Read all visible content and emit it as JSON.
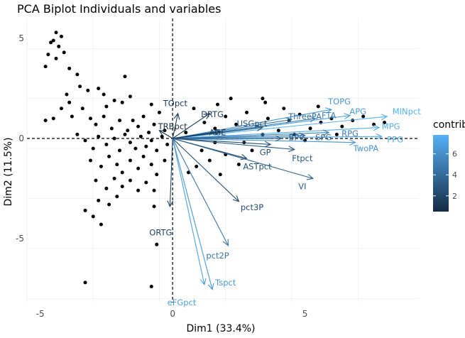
{
  "chart_data": {
    "type": "scatter",
    "title": "PCA Biplot Individuals and variables",
    "xlabel": "Dim1 (33.4%)",
    "ylabel": "Dim2 (11.5%)",
    "xlim": [
      -5.5,
      9.3
    ],
    "ylim": [
      -8.2,
      6.0
    ],
    "x_ticks": [
      -5,
      0,
      5
    ],
    "y_ticks": [
      -5,
      0,
      5
    ],
    "grid": true,
    "legend": {
      "title": "contrib",
      "position": "right",
      "min": 0.5,
      "max": 7.8,
      "ticks": [
        2,
        4,
        6
      ],
      "low_color": "#132b43",
      "high_color": "#56b1f7"
    },
    "individuals": [
      [
        -4.4,
        5.3
      ],
      [
        -4.2,
        5.1
      ],
      [
        -4.5,
        4.9
      ],
      [
        -4.3,
        4.6
      ],
      [
        -4.6,
        4.8
      ],
      [
        -4.1,
        4.3
      ],
      [
        -4.4,
        4.0
      ],
      [
        -4.7,
        4.2
      ],
      [
        -3.9,
        3.5
      ],
      [
        -3.6,
        3.2
      ],
      [
        -4.8,
        3.6
      ],
      [
        -1.8,
        3.1
      ],
      [
        -3.5,
        2.6
      ],
      [
        -3.2,
        2.4
      ],
      [
        -2.8,
        2.5
      ],
      [
        -4.0,
        2.2
      ],
      [
        -2.6,
        2.2
      ],
      [
        -1.9,
        1.8
      ],
      [
        -4.2,
        1.5
      ],
      [
        -3.9,
        1.8
      ],
      [
        -2.5,
        1.6
      ],
      [
        -2.2,
        1.9
      ],
      [
        -1.6,
        2.1
      ],
      [
        -0.8,
        1.7
      ],
      [
        -4.5,
        1.0
      ],
      [
        -4.8,
        0.9
      ],
      [
        -3.8,
        1.1
      ],
      [
        -3.4,
        1.5
      ],
      [
        -3.1,
        1.0
      ],
      [
        -2.9,
        0.7
      ],
      [
        -2.6,
        1.1
      ],
      [
        -2.3,
        0.5
      ],
      [
        -2.0,
        0.9
      ],
      [
        -1.7,
        0.4
      ],
      [
        -1.5,
        0.9
      ],
      [
        -1.3,
        0.6
      ],
      [
        -1.1,
        1.1
      ],
      [
        -0.9,
        0.3
      ],
      [
        -0.7,
        0.7
      ],
      [
        -0.5,
        1.3
      ],
      [
        -0.3,
        0.4
      ],
      [
        -3.6,
        0.2
      ],
      [
        -3.3,
        -0.1
      ],
      [
        -3.0,
        -0.5
      ],
      [
        -2.8,
        0.1
      ],
      [
        -2.5,
        -0.3
      ],
      [
        -2.2,
        0.0
      ],
      [
        -2.0,
        -0.6
      ],
      [
        -1.8,
        0.2
      ],
      [
        -1.6,
        -0.2
      ],
      [
        -1.4,
        -0.5
      ],
      [
        -1.2,
        0.1
      ],
      [
        -1.0,
        -0.4
      ],
      [
        -0.8,
        -0.1
      ],
      [
        -0.6,
        -0.6
      ],
      [
        -0.4,
        0.1
      ],
      [
        -0.2,
        -0.3
      ],
      [
        -3.1,
        -1.1
      ],
      [
        -2.7,
        -1.4
      ],
      [
        -2.4,
        -0.9
      ],
      [
        -2.1,
        -1.3
      ],
      [
        -1.9,
        -1.7
      ],
      [
        -1.6,
        -1.1
      ],
      [
        -1.3,
        -1.5
      ],
      [
        -1.1,
        -0.9
      ],
      [
        -0.8,
        -1.3
      ],
      [
        -0.6,
        -1.8
      ],
      [
        -0.3,
        -1.1
      ],
      [
        -2.9,
        -2.1
      ],
      [
        -2.5,
        -2.5
      ],
      [
        -2.2,
        -2.0
      ],
      [
        -1.9,
        -2.4
      ],
      [
        -1.6,
        -2.1
      ],
      [
        -1.3,
        -2.6
      ],
      [
        -1.0,
        -2.2
      ],
      [
        -0.7,
        -2.6
      ],
      [
        -2.8,
        -3.1
      ],
      [
        -2.4,
        -3.3
      ],
      [
        -2.1,
        -2.9
      ],
      [
        -3.0,
        -3.9
      ],
      [
        -2.7,
        -4.3
      ],
      [
        -3.3,
        -3.6
      ],
      [
        -0.7,
        -3.4
      ],
      [
        -0.6,
        -5.3
      ],
      [
        -3.3,
        -7.2
      ],
      [
        -0.8,
        -7.4
      ],
      [
        1.2,
        0.8
      ],
      [
        1.6,
        0.5
      ],
      [
        2.0,
        1.1
      ],
      [
        2.4,
        0.7
      ],
      [
        2.8,
        1.3
      ],
      [
        3.2,
        0.6
      ],
      [
        3.6,
        1.0
      ],
      [
        4.0,
        0.4
      ],
      [
        4.4,
        0.9
      ],
      [
        4.8,
        1.2
      ],
      [
        5.2,
        0.5
      ],
      [
        5.6,
        0.8
      ],
      [
        6.0,
        1.0
      ],
      [
        6.4,
        0.6
      ],
      [
        6.8,
        0.9
      ],
      [
        7.2,
        1.1
      ],
      [
        7.6,
        0.7
      ],
      [
        8.0,
        0.8
      ],
      [
        6.2,
        0.2
      ],
      [
        5.0,
        -0.1
      ],
      [
        3.4,
        0.2
      ],
      [
        1.6,
        -0.2
      ],
      [
        1.1,
        -0.6
      ],
      [
        1.4,
        -1.1
      ],
      [
        2.0,
        -0.8
      ],
      [
        2.5,
        -1.3
      ],
      [
        3.0,
        -0.6
      ],
      [
        1.8,
        -1.8
      ],
      [
        2.2,
        2.0
      ],
      [
        3.5,
        1.8
      ],
      [
        4.2,
        1.5
      ],
      [
        5.5,
        1.6
      ],
      [
        0.8,
        1.5
      ],
      [
        0.9,
        -1.4
      ],
      [
        3.4,
        2.0
      ],
      [
        1.7,
        1.7
      ],
      [
        0.6,
        -1.7
      ],
      [
        2.7,
        -0.2
      ],
      [
        4.6,
        0.2
      ],
      [
        0.5,
        0.3
      ]
    ],
    "variables": [
      {
        "name": "MINpct",
        "x": 8.1,
        "y": 1.1,
        "contrib": 7.8
      },
      {
        "name": "MPG",
        "x": 7.8,
        "y": 0.55,
        "contrib": 7.6
      },
      {
        "name": "PPG",
        "x": 7.9,
        "y": 0.1,
        "contrib": 7.4
      },
      {
        "name": "APG",
        "x": 6.7,
        "y": 1.15,
        "contrib": 6.8
      },
      {
        "name": "TOPG",
        "x": 6.0,
        "y": 1.45,
        "contrib": 6.4
      },
      {
        "name": "FTA",
        "x": 5.4,
        "y": 1.0,
        "contrib": 5.2
      },
      {
        "name": "ThreePA",
        "x": 4.5,
        "y": 0.95,
        "contrib": 4.2
      },
      {
        "name": "TwoPA",
        "x": 6.9,
        "y": -0.2,
        "contrib": 6.3
      },
      {
        "name": "RPG",
        "x": 5.9,
        "y": 0.3,
        "contrib": 5.1
      },
      {
        "name": "SPG",
        "x": 5.0,
        "y": 0.15,
        "contrib": 4.3
      },
      {
        "name": "BPG",
        "x": 4.1,
        "y": 0.0,
        "contrib": 3.4
      },
      {
        "name": "USGpct",
        "x": 3.4,
        "y": 0.55,
        "contrib": 2.8
      },
      {
        "name": "AGE",
        "x": 1.8,
        "y": 0.35,
        "contrib": 1.2
      },
      {
        "name": "DRTG",
        "x": 1.4,
        "y": 1.25,
        "contrib": 1.3
      },
      {
        "name": "TOpct",
        "x": 0.2,
        "y": 1.25,
        "contrib": 1.1
      },
      {
        "name": "TRBpct",
        "x": -0.5,
        "y": 0.4,
        "contrib": 0.6
      },
      {
        "name": "GP",
        "x": 3.7,
        "y": -0.3,
        "contrib": 2.7
      },
      {
        "name": "Ftpct",
        "x": 4.6,
        "y": -0.55,
        "contrib": 3.1
      },
      {
        "name": "ASTpct",
        "x": 2.8,
        "y": -1.0,
        "contrib": 2.5
      },
      {
        "name": "VI",
        "x": 5.3,
        "y": -2.0,
        "contrib": 3.6
      },
      {
        "name": "pct3P",
        "x": 2.5,
        "y": -3.15,
        "contrib": 2.3
      },
      {
        "name": "pct2P",
        "x": 2.1,
        "y": -5.35,
        "contrib": 4.6
      },
      {
        "name": "Tspct",
        "x": 1.5,
        "y": -7.55,
        "contrib": 6.5
      },
      {
        "name": "eFGpct",
        "x": 1.2,
        "y": -7.3,
        "contrib": 6.9
      },
      {
        "name": "ORTG",
        "x": -0.1,
        "y": -3.4,
        "contrib": 1.9
      }
    ],
    "label_positions": {
      "MINpct": [
        8.3,
        1.35,
        "start"
      ],
      "MPG": [
        7.9,
        0.6,
        "start"
      ],
      "PPG": [
        8.1,
        -0.05,
        "start"
      ],
      "APG": [
        7.0,
        1.35,
        "middle"
      ],
      "TOPG": [
        6.3,
        1.85,
        "middle"
      ],
      "FTA": [
        5.9,
        1.15,
        "middle"
      ],
      "ThreePA": [
        5.0,
        1.1,
        "middle"
      ],
      "TwoPA": [
        7.3,
        -0.5,
        "middle"
      ],
      "RPG": [
        6.7,
        0.25,
        "middle"
      ],
      "SPG": [
        5.7,
        0.05,
        "middle"
      ],
      "BPG": [
        4.7,
        0.05,
        "middle"
      ],
      "USGpct": [
        3.0,
        0.75,
        "middle"
      ],
      "AGE": [
        1.7,
        0.3,
        "middle"
      ],
      "DRTG": [
        1.5,
        1.2,
        "middle"
      ],
      "TOpct": [
        0.1,
        1.75,
        "middle"
      ],
      "TRBpct": [
        0.0,
        0.6,
        "middle"
      ],
      "GP": [
        3.5,
        -0.7,
        "middle"
      ],
      "Ftpct": [
        4.9,
        -1.0,
        "middle"
      ],
      "ASTpct": [
        3.2,
        -1.4,
        "middle"
      ],
      "VI": [
        4.9,
        -2.4,
        "middle"
      ],
      "pct3P": [
        3.0,
        -3.45,
        "middle"
      ],
      "pct2P": [
        1.7,
        -5.85,
        "middle"
      ],
      "Tspct": [
        2.0,
        -7.2,
        "middle"
      ],
      "eFGpct": [
        -0.2,
        -8.2,
        "start"
      ],
      "ORTG": [
        -0.45,
        -4.7,
        "middle"
      ]
    }
  }
}
